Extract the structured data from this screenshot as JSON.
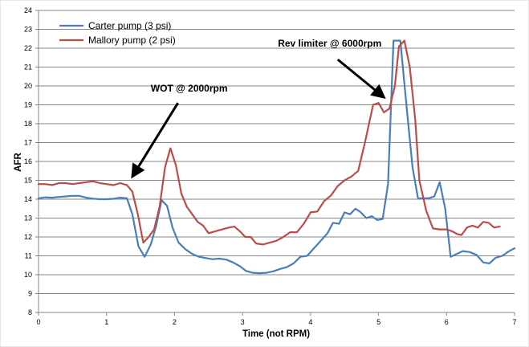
{
  "chart_data": {
    "type": "line",
    "xlabel": "Time (not RPM)",
    "ylabel": "AFR",
    "xlim": [
      0,
      7
    ],
    "ylim": [
      8,
      24
    ],
    "x_ticks": [
      "0",
      "1",
      "2",
      "3",
      "4",
      "5",
      "6",
      "7"
    ],
    "y_ticks": [
      "8",
      "9",
      "10",
      "11",
      "12",
      "13",
      "14",
      "15",
      "16",
      "17",
      "18",
      "19",
      "20",
      "21",
      "22",
      "23",
      "24"
    ],
    "grid": "horizontal",
    "legend_position": "top-left",
    "series": [
      {
        "name": "Carter pump (3 psi)",
        "color": "#4a7ebb",
        "points": [
          [
            0.0,
            14.05
          ],
          [
            0.1,
            14.1
          ],
          [
            0.2,
            14.08
          ],
          [
            0.3,
            14.12
          ],
          [
            0.4,
            14.15
          ],
          [
            0.5,
            14.18
          ],
          [
            0.6,
            14.18
          ],
          [
            0.7,
            14.08
          ],
          [
            0.8,
            14.03
          ],
          [
            0.9,
            14.0
          ],
          [
            1.0,
            14.0
          ],
          [
            1.1,
            14.02
          ],
          [
            1.2,
            14.08
          ],
          [
            1.3,
            14.05
          ],
          [
            1.38,
            13.2
          ],
          [
            1.47,
            11.5
          ],
          [
            1.56,
            10.95
          ],
          [
            1.65,
            11.6
          ],
          [
            1.73,
            12.6
          ],
          [
            1.81,
            13.95
          ],
          [
            1.89,
            13.65
          ],
          [
            1.97,
            12.5
          ],
          [
            2.06,
            11.7
          ],
          [
            2.16,
            11.35
          ],
          [
            2.26,
            11.1
          ],
          [
            2.36,
            10.95
          ],
          [
            2.46,
            10.88
          ],
          [
            2.56,
            10.82
          ],
          [
            2.66,
            10.85
          ],
          [
            2.76,
            10.8
          ],
          [
            2.86,
            10.65
          ],
          [
            2.96,
            10.45
          ],
          [
            3.05,
            10.2
          ],
          [
            3.15,
            10.1
          ],
          [
            3.25,
            10.08
          ],
          [
            3.35,
            10.1
          ],
          [
            3.45,
            10.18
          ],
          [
            3.55,
            10.3
          ],
          [
            3.65,
            10.4
          ],
          [
            3.75,
            10.6
          ],
          [
            3.85,
            10.95
          ],
          [
            3.95,
            11.0
          ],
          [
            4.05,
            11.4
          ],
          [
            4.15,
            11.8
          ],
          [
            4.25,
            12.2
          ],
          [
            4.33,
            12.75
          ],
          [
            4.42,
            12.7
          ],
          [
            4.5,
            13.3
          ],
          [
            4.58,
            13.2
          ],
          [
            4.66,
            13.5
          ],
          [
            4.74,
            13.3
          ],
          [
            4.82,
            13.0
          ],
          [
            4.9,
            13.1
          ],
          [
            4.98,
            12.9
          ],
          [
            5.06,
            12.95
          ],
          [
            5.14,
            14.8
          ],
          [
            5.22,
            22.4
          ],
          [
            5.32,
            22.4
          ],
          [
            5.42,
            18.6
          ],
          [
            5.5,
            15.7
          ],
          [
            5.58,
            14.05
          ],
          [
            5.66,
            14.05
          ],
          [
            5.74,
            14.05
          ],
          [
            5.82,
            14.15
          ],
          [
            5.9,
            14.9
          ],
          [
            5.98,
            13.5
          ],
          [
            6.06,
            10.95
          ],
          [
            6.15,
            11.1
          ],
          [
            6.24,
            11.25
          ],
          [
            6.34,
            11.2
          ],
          [
            6.44,
            11.05
          ],
          [
            6.54,
            10.65
          ],
          [
            6.63,
            10.6
          ],
          [
            6.72,
            10.9
          ],
          [
            6.82,
            11.0
          ],
          [
            6.92,
            11.25
          ],
          [
            7.0,
            11.4
          ]
        ]
      },
      {
        "name": "Mallory pump (2 psi)",
        "color": "#be4b48",
        "points": [
          [
            0.0,
            14.8
          ],
          [
            0.1,
            14.8
          ],
          [
            0.2,
            14.75
          ],
          [
            0.3,
            14.85
          ],
          [
            0.4,
            14.85
          ],
          [
            0.5,
            14.8
          ],
          [
            0.6,
            14.85
          ],
          [
            0.7,
            14.9
          ],
          [
            0.8,
            14.95
          ],
          [
            0.9,
            14.85
          ],
          [
            1.0,
            14.8
          ],
          [
            1.1,
            14.75
          ],
          [
            1.2,
            14.85
          ],
          [
            1.3,
            14.75
          ],
          [
            1.38,
            14.4
          ],
          [
            1.46,
            13.2
          ],
          [
            1.54,
            11.7
          ],
          [
            1.62,
            12.0
          ],
          [
            1.7,
            12.4
          ],
          [
            1.78,
            13.6
          ],
          [
            1.86,
            15.7
          ],
          [
            1.94,
            16.7
          ],
          [
            2.02,
            15.8
          ],
          [
            2.1,
            14.3
          ],
          [
            2.18,
            13.6
          ],
          [
            2.26,
            13.2
          ],
          [
            2.34,
            12.8
          ],
          [
            2.42,
            12.6
          ],
          [
            2.5,
            12.2
          ],
          [
            2.6,
            12.3
          ],
          [
            2.7,
            12.4
          ],
          [
            2.8,
            12.5
          ],
          [
            2.88,
            12.55
          ],
          [
            2.96,
            12.3
          ],
          [
            3.04,
            12.0
          ],
          [
            3.12,
            12.0
          ],
          [
            3.2,
            11.65
          ],
          [
            3.3,
            11.6
          ],
          [
            3.4,
            11.7
          ],
          [
            3.5,
            11.8
          ],
          [
            3.6,
            12.0
          ],
          [
            3.7,
            12.25
          ],
          [
            3.8,
            12.25
          ],
          [
            3.9,
            12.7
          ],
          [
            4.0,
            13.3
          ],
          [
            4.1,
            13.35
          ],
          [
            4.2,
            13.9
          ],
          [
            4.3,
            14.2
          ],
          [
            4.4,
            14.7
          ],
          [
            4.5,
            15.0
          ],
          [
            4.6,
            15.2
          ],
          [
            4.7,
            15.5
          ],
          [
            4.8,
            17.0
          ],
          [
            4.92,
            19.0
          ],
          [
            5.0,
            19.1
          ],
          [
            5.08,
            18.6
          ],
          [
            5.16,
            18.8
          ],
          [
            5.24,
            20.0
          ],
          [
            5.3,
            22.1
          ],
          [
            5.38,
            22.4
          ],
          [
            5.46,
            21.0
          ],
          [
            5.54,
            18.2
          ],
          [
            5.6,
            15.0
          ],
          [
            5.7,
            13.4
          ],
          [
            5.8,
            12.45
          ],
          [
            5.9,
            12.4
          ],
          [
            6.0,
            12.4
          ],
          [
            6.08,
            12.3
          ],
          [
            6.16,
            12.15
          ],
          [
            6.22,
            12.1
          ],
          [
            6.3,
            12.5
          ],
          [
            6.38,
            12.6
          ],
          [
            6.46,
            12.5
          ],
          [
            6.54,
            12.8
          ],
          [
            6.62,
            12.75
          ],
          [
            6.7,
            12.5
          ],
          [
            6.78,
            12.55
          ]
        ]
      }
    ],
    "annotations": [
      {
        "text": "WOT @ 2000rpm",
        "from": [
          2.05,
          19.1
        ],
        "to": [
          1.38,
          15.2
        ]
      },
      {
        "text": "Rev limiter  @ 6000rpm",
        "from": [
          4.4,
          21.4
        ],
        "to": [
          5.08,
          19.4
        ]
      }
    ]
  }
}
